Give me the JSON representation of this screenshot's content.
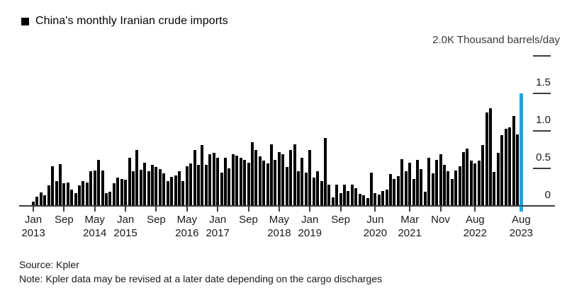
{
  "legend": {
    "label": "China's monthly Iranian crude imports"
  },
  "axis_unit_label": "2.0K Thousand barrels/day",
  "footer": {
    "source": "Source: Kpler",
    "note": "Note: Kpler data may be revised at a later date depending on the cargo discharges"
  },
  "colors": {
    "bar": "#000000",
    "highlight": "#24A3DC",
    "axis": "#3d3d3d",
    "tick_text": "#1a1a1a"
  },
  "chart_data": {
    "type": "bar",
    "title": "China's monthly Iranian crude imports",
    "ylabel": "Thousand barrels/day",
    "ylim": [
      0,
      2.0
    ],
    "grid": false,
    "legend_position": "top-left",
    "value_axis_side": "right",
    "x_start": "Jan 2013",
    "x_end": "Aug 2023",
    "x_freq": "monthly",
    "highlight_index": 127,
    "highlight_label": "Aug 2023",
    "y_ticks": [
      {
        "value": 0,
        "label": "0"
      },
      {
        "value": 0.5,
        "label": "0.5"
      },
      {
        "value": 1.0,
        "label": "1.0"
      },
      {
        "value": 1.5,
        "label": "1.5"
      },
      {
        "value": 2.0,
        "label": "2.0K"
      }
    ],
    "x_ticks": [
      {
        "month_index": 0,
        "line1": "Jan",
        "line2": "2013"
      },
      {
        "month_index": 8,
        "line1": "Sep",
        "line2": ""
      },
      {
        "month_index": 16,
        "line1": "May",
        "line2": "2014"
      },
      {
        "month_index": 24,
        "line1": "Jan",
        "line2": "2015"
      },
      {
        "month_index": 32,
        "line1": "Sep",
        "line2": ""
      },
      {
        "month_index": 40,
        "line1": "May",
        "line2": "2016"
      },
      {
        "month_index": 48,
        "line1": "Jan",
        "line2": "2017"
      },
      {
        "month_index": 56,
        "line1": "Sep",
        "line2": ""
      },
      {
        "month_index": 64,
        "line1": "May",
        "line2": "2018"
      },
      {
        "month_index": 72,
        "line1": "Jan",
        "line2": "2019"
      },
      {
        "month_index": 80,
        "line1": "Sep",
        "line2": ""
      },
      {
        "month_index": 89,
        "line1": "Jun",
        "line2": "2020"
      },
      {
        "month_index": 98,
        "line1": "Mar",
        "line2": "2021"
      },
      {
        "month_index": 106,
        "line1": "Nov",
        "line2": ""
      },
      {
        "month_index": 115,
        "line1": "Aug",
        "line2": "2022"
      },
      {
        "month_index": 127,
        "line1": "Aug",
        "line2": "2023"
      }
    ],
    "values": [
      0.06,
      0.12,
      0.18,
      0.14,
      0.27,
      0.53,
      0.33,
      0.56,
      0.3,
      0.31,
      0.22,
      0.17,
      0.27,
      0.33,
      0.31,
      0.46,
      0.47,
      0.61,
      0.47,
      0.17,
      0.19,
      0.3,
      0.38,
      0.36,
      0.35,
      0.64,
      0.46,
      0.75,
      0.48,
      0.58,
      0.46,
      0.55,
      0.52,
      0.49,
      0.43,
      0.33,
      0.39,
      0.41,
      0.46,
      0.33,
      0.53,
      0.57,
      0.75,
      0.55,
      0.81,
      0.55,
      0.69,
      0.71,
      0.64,
      0.44,
      0.64,
      0.5,
      0.69,
      0.67,
      0.64,
      0.61,
      0.58,
      0.85,
      0.75,
      0.66,
      0.6,
      0.57,
      0.82,
      0.61,
      0.72,
      0.69,
      0.52,
      0.75,
      0.82,
      0.46,
      0.64,
      0.44,
      0.75,
      0.38,
      0.46,
      0.33,
      0.91,
      0.28,
      0.11,
      0.28,
      0.17,
      0.28,
      0.2,
      0.28,
      0.24,
      0.16,
      0.14,
      0.1,
      0.44,
      0.17,
      0.15,
      0.2,
      0.22,
      0.42,
      0.36,
      0.4,
      0.62,
      0.46,
      0.58,
      0.36,
      0.61,
      0.49,
      0.19,
      0.64,
      0.43,
      0.61,
      0.69,
      0.55,
      0.46,
      0.36,
      0.47,
      0.53,
      0.72,
      0.76,
      0.6,
      0.57,
      0.6,
      0.81,
      1.25,
      1.3,
      0.45,
      0.71,
      0.94,
      1.03,
      1.05,
      1.2,
      0.95,
      1.5
    ]
  }
}
